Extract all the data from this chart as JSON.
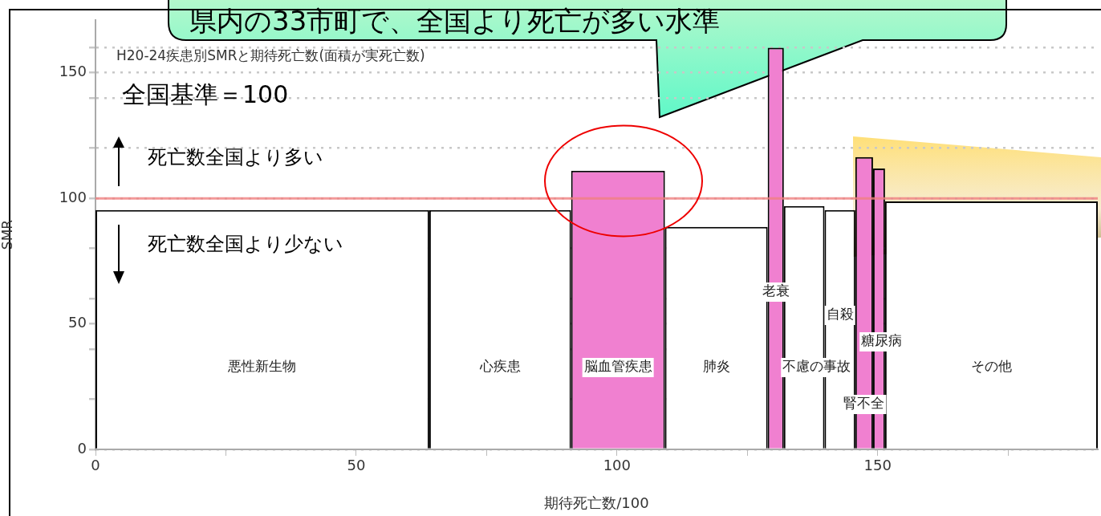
{
  "chart_data": {
    "type": "histogram",
    "title": "H20-24疾患別SMRと期待死亡数(面積が実死亡数)",
    "xlabel": "期待死亡数/100",
    "ylabel": "SMR",
    "bins": [
      0,
      64,
      91.2,
      109.2,
      128.9,
      132,
      139.8,
      145.7,
      149.1,
      151.4,
      192.2
    ],
    "values": [
      95.3,
      95.3,
      111,
      88.6,
      160,
      96.9,
      95.3,
      116.4,
      111.9,
      98.8
    ],
    "colors": [
      "#ffffff",
      "#ffffff",
      "#f080d0",
      "#ffffff",
      "#f080d0",
      "#ffffff",
      "#ffffff",
      "#f080d0",
      "#f080d0",
      "#ffffff"
    ],
    "xlim": [
      0,
      192.2
    ],
    "ylim": [
      0,
      171
    ],
    "xticks": [
      0,
      {
        "value": 25,
        "label": null
      },
      50,
      {
        "value": 75,
        "label": null
      },
      100,
      {
        "value": 125,
        "label": null
      },
      150,
      {
        "value": 175,
        "label": null
      }
    ],
    "yticks": [
      0,
      {
        "value": 20,
        "label": null
      },
      {
        "value": 40,
        "label": null
      },
      50,
      {
        "value": 60,
        "label": null
      },
      {
        "value": 80,
        "label": null
      },
      100,
      {
        "value": 120,
        "label": null
      },
      {
        "value": 140,
        "label": null
      },
      150,
      {
        "value": 160,
        "label": null
      }
    ],
    "grid": "y",
    "ref_lines": [
      {
        "axis": "y",
        "value": 100,
        "color": "#f08080"
      }
    ],
    "annotations": [
      "県内の33市町で、全国より死亡が多い水準",
      "全国基準＝100",
      "死亡数全国より多い",
      "死亡数全国より少ない",
      "悪性新生物",
      "心疾患",
      "脳血管疾患",
      "肺炎",
      "老衰",
      "不慮の事故",
      "自殺",
      "腎不全",
      "糖尿病",
      "その他"
    ]
  }
}
